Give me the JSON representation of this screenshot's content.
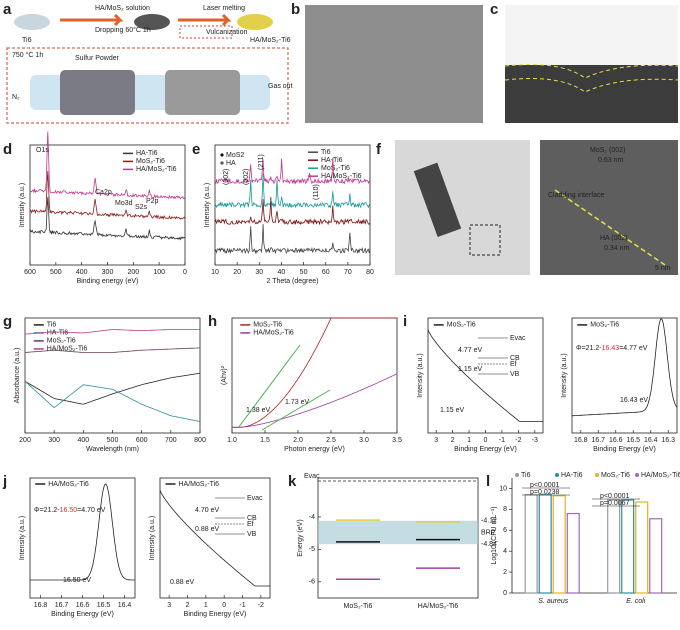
{
  "panels": {
    "a": {
      "label": "a",
      "texts": [
        "Ti6",
        "HA/MoS₂ solution",
        "Dropping  60°C 1h",
        "Laser melting",
        "Vulcanization",
        "HA/MoS₂-Ti6",
        "750 °C 1h",
        "Sulfur Powder",
        "N₂",
        "Gas out"
      ]
    },
    "b": {
      "label": "b"
    },
    "c": {
      "label": "c"
    },
    "d": {
      "label": "d",
      "xlabel": "Binding energy (eV)",
      "ylabel": "Intensity (a.u.)",
      "xlim": [
        600,
        0
      ],
      "xticks": [
        600,
        500,
        400,
        300,
        200,
        100,
        0
      ],
      "series": [
        {
          "name": "HA-Ti6",
          "color": "#333333"
        },
        {
          "name": "MoS₂-Ti6",
          "color": "#8b1a1a"
        },
        {
          "name": "HA/MoS₂-Ti6",
          "color": "#c0398f"
        }
      ],
      "annotations": [
        "O1s",
        "Ca2p",
        "Mo3d",
        "S2s",
        "P2p"
      ]
    },
    "e": {
      "label": "e",
      "xlabel": "2 Theta (degree)",
      "ylabel": "Intensity (a.u.)",
      "xlim": [
        10,
        80
      ],
      "xticks": [
        10,
        20,
        30,
        40,
        50,
        60,
        70,
        80
      ],
      "series": [
        {
          "name": "Ti6",
          "color": "#444444"
        },
        {
          "name": "HA-Ti6",
          "color": "#7a1010"
        },
        {
          "name": "MoS₂-Ti6",
          "color": "#1a9a9a"
        },
        {
          "name": "HA/MoS₂-Ti6",
          "color": "#c0398f"
        }
      ],
      "markers": [
        "MoS2",
        "HA"
      ],
      "annotations": [
        "(002)",
        "(002)",
        "(211)",
        "(110)"
      ]
    },
    "f": {
      "label": "f",
      "texts": [
        "Cladding interface",
        "MoS₂ (002)",
        "0.63 nm",
        "HA (002)",
        "0.34 nm",
        "5 nm"
      ]
    },
    "g": {
      "label": "g",
      "xlabel": "Wavelength (nm)",
      "ylabel": "Absorbance (a.u.)",
      "xlim": [
        200,
        800
      ],
      "xticks": [
        200,
        300,
        400,
        500,
        600,
        700,
        800
      ],
      "series": [
        {
          "name": "Ti6",
          "color": "#222222"
        },
        {
          "name": "HA-Ti6",
          "color": "#2a8fa0"
        },
        {
          "name": "MoS₂-Ti6",
          "color": "#6b3a5a"
        },
        {
          "name": "HA/MoS₂-Ti6",
          "color": "#c0398f"
        }
      ]
    },
    "h": {
      "label": "h",
      "xlabel": "Photon energy (eV)",
      "ylabel": "(Ahν)²",
      "xlim": [
        1.0,
        3.5
      ],
      "xticks": [
        {
          "value": 1,
          "label": "1.0"
        },
        1.5,
        {
          "value": 2,
          "label": "2.0"
        },
        2.5,
        {
          "value": 3,
          "label": "3.0"
        },
        3.5
      ],
      "series": [
        {
          "name": "MoS₂-Ti6",
          "color": "#b22222"
        },
        {
          "name": "HA/MoS₂-Ti6",
          "color": "#9b3a9b"
        }
      ],
      "annotations": [
        "1.38 eV",
        "1.73 eV"
      ]
    },
    "i": {
      "label": "i",
      "left": {
        "xlabel": "Binding Energy (eV)",
        "ylabel": "Intensity (a.u.)",
        "xlim": [
          3.5,
          -3.5
        ],
        "xticks": [
          3,
          2,
          1,
          0,
          -1,
          -2,
          -3
        ],
        "series": [
          {
            "name": "MoS₂-Ti6",
            "color": "#222222"
          }
        ],
        "annotations": [
          "1.15 eV"
        ],
        "inset": [
          "Evac",
          "4.77 eV",
          "CB",
          "Ef",
          "1.15 eV",
          "VB"
        ]
      },
      "right": {
        "xlabel": "Binding Energy (eV)",
        "ylabel": "Intensity (a.u.)",
        "xlim": [
          16.85,
          16.25
        ],
        "xticks": [
          16.8,
          16.7,
          16.6,
          16.5,
          16.4,
          16.3
        ],
        "series": [
          {
            "name": "MoS₂-Ti6",
            "color": "#222222"
          }
        ],
        "annotations": [
          "16.43 eV"
        ],
        "formula": [
          "Φ=21.2-",
          "16.43",
          "=4.77 eV"
        ]
      }
    },
    "j": {
      "label": "j",
      "left": {
        "xlabel": "Binding Energy (eV)",
        "ylabel": "Intensity (a.u.)",
        "xlim": [
          16.85,
          16.35
        ],
        "xticks": [
          16.8,
          16.7,
          16.6,
          16.5,
          16.4
        ],
        "series": [
          {
            "name": "HA/MoS₂-Ti6",
            "color": "#222222"
          }
        ],
        "annotations": [
          "16.50 eV"
        ],
        "formula": [
          "Φ=21.2-",
          "16.50",
          "=4.70 eV"
        ]
      },
      "right": {
        "xlabel": "Binding Energy (eV)",
        "ylabel": "Intensity (a.u.)",
        "xlim": [
          3.5,
          -2.5
        ],
        "xticks": [
          3,
          2,
          1,
          0,
          -1,
          -2
        ],
        "series": [
          {
            "name": "HA/MoS₂-Ti6",
            "color": "#222222"
          }
        ],
        "annotations": [
          "0.88 eV"
        ],
        "inset": [
          "Evac",
          "4.70 eV",
          "CB",
          "Ef",
          "0.88 eV",
          "VB"
        ]
      }
    },
    "k": {
      "label": "k",
      "type": "levels",
      "ylabel": "Energy (eV)",
      "ylim": [
        -6.5,
        -2.8
      ],
      "yticks": [
        -4,
        -5,
        -6
      ],
      "categories": [
        "MoS₂-Ti6",
        "HA/MoS₂-Ti6"
      ],
      "evac": "Evac",
      "cb_levels": [
        -4.1,
        -4.15
      ],
      "fermi_levels": [
        -4.77,
        -4.7
      ],
      "vb_levels": [
        -5.92,
        -5.58
      ],
      "brp": [
        -4.12,
        -4.84
      ],
      "brp_label": "BRP"
    },
    "l": {
      "label": "l",
      "type": "bar",
      "ylabel": "Log10 (CFU mL⁻¹)",
      "ylim": [
        0,
        11
      ],
      "yticks": [
        0,
        2,
        4,
        6,
        8,
        10
      ],
      "categories": [
        "S. aureus",
        "E. coli"
      ],
      "series": [
        {
          "name": "Ti6",
          "color": "#9a9a9a",
          "values": [
            9.4,
            8.9
          ]
        },
        {
          "name": "HA-Ti6",
          "color": "#2a8fa0",
          "values": [
            9.4,
            8.9
          ]
        },
        {
          "name": "MoS₂-Ti6",
          "color": "#e0b32a",
          "values": [
            9.3,
            8.7
          ]
        },
        {
          "name": "HA/MoS₂-Ti6",
          "color": "#9b6bb5",
          "values": [
            7.6,
            7.1
          ]
        }
      ],
      "annotations": [
        "p<0.0001",
        "p=0.0238",
        "p<0.0001",
        "p=0.0067"
      ]
    }
  }
}
